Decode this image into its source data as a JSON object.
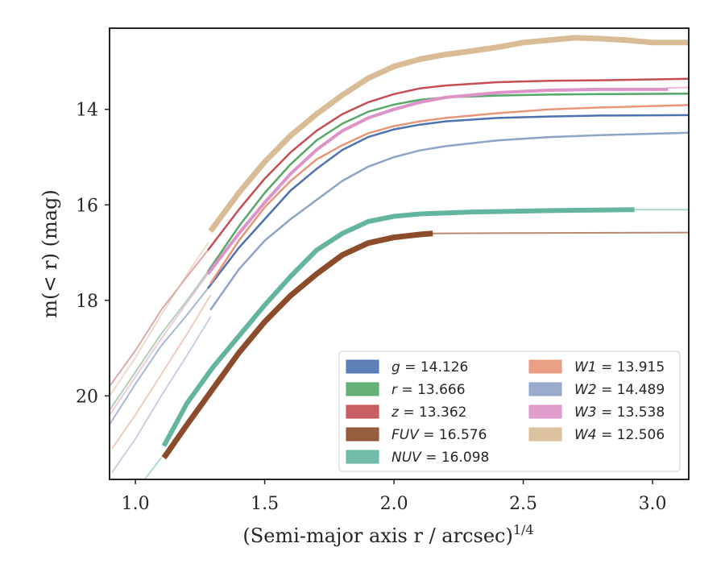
{
  "chart_data": {
    "type": "line",
    "title": "",
    "xlabel": "(Semi-major axis r / arcsec)",
    "xlabel_exponent": "1/4",
    "ylabel": "m(< r) (mag)",
    "xlim": [
      0.9,
      3.14
    ],
    "ylim": [
      21.75,
      12.3
    ],
    "y_inverted": true,
    "grid": false,
    "legend_position": "lower-right",
    "legend_columns": 2,
    "x_ticks": [
      1.0,
      1.5,
      2.0,
      2.5,
      3.0
    ],
    "x_tick_labels": [
      "1.0",
      "1.5",
      "2.0",
      "2.5",
      "3.0"
    ],
    "y_ticks": [
      14,
      16,
      18,
      20
    ],
    "y_tick_labels": [
      "14",
      "16",
      "18",
      "20"
    ],
    "series": [
      {
        "name": "g = 14.126",
        "band": "g",
        "mag": "14.126",
        "color": "#4c72b0",
        "faint": [
          [
            0.9,
            20.6
          ],
          [
            1.0,
            19.75
          ],
          [
            1.1,
            18.95
          ],
          [
            1.2,
            18.3
          ],
          [
            1.28,
            17.75
          ]
        ],
        "bold": [
          [
            1.28,
            17.75
          ],
          [
            1.4,
            16.9
          ],
          [
            1.5,
            16.3
          ],
          [
            1.6,
            15.7
          ],
          [
            1.7,
            15.25
          ],
          [
            1.8,
            14.85
          ],
          [
            1.9,
            14.58
          ],
          [
            2.0,
            14.42
          ],
          [
            2.1,
            14.32
          ],
          [
            2.2,
            14.25
          ],
          [
            2.4,
            14.18
          ],
          [
            2.6,
            14.15
          ],
          [
            2.8,
            14.13
          ],
          [
            3.14,
            14.12
          ]
        ],
        "bold_width": 2.5,
        "tail": []
      },
      {
        "name": "r = 13.666",
        "band": "r",
        "mag": "13.666",
        "color": "#55a868",
        "faint": [
          [
            0.9,
            20.3
          ],
          [
            1.0,
            19.5
          ],
          [
            1.1,
            18.7
          ],
          [
            1.2,
            18.0
          ],
          [
            1.28,
            17.4
          ]
        ],
        "bold": [
          [
            1.28,
            17.4
          ],
          [
            1.4,
            16.45
          ],
          [
            1.5,
            15.75
          ],
          [
            1.6,
            15.15
          ],
          [
            1.7,
            14.65
          ],
          [
            1.8,
            14.3
          ],
          [
            1.9,
            14.05
          ],
          [
            2.0,
            13.9
          ],
          [
            2.1,
            13.8
          ],
          [
            2.2,
            13.75
          ],
          [
            2.4,
            13.71
          ],
          [
            2.6,
            13.69
          ],
          [
            2.8,
            13.68
          ],
          [
            3.14,
            13.67
          ]
        ],
        "bold_width": 2.5,
        "tail": []
      },
      {
        "name": "z = 13.362",
        "band": "z",
        "mag": "13.362",
        "color": "#c44e52",
        "faint": [
          [
            0.9,
            19.8
          ],
          [
            1.0,
            19.05
          ],
          [
            1.1,
            18.2
          ],
          [
            1.2,
            17.5
          ],
          [
            1.28,
            16.95
          ]
        ],
        "bold": [
          [
            1.28,
            16.95
          ],
          [
            1.4,
            16.1
          ],
          [
            1.5,
            15.45
          ],
          [
            1.6,
            14.9
          ],
          [
            1.7,
            14.45
          ],
          [
            1.8,
            14.1
          ],
          [
            1.9,
            13.85
          ],
          [
            2.0,
            13.68
          ],
          [
            2.1,
            13.56
          ],
          [
            2.2,
            13.5
          ],
          [
            2.4,
            13.43
          ],
          [
            2.6,
            13.4
          ],
          [
            2.8,
            13.39
          ],
          [
            3.14,
            13.36
          ]
        ],
        "bold_width": 2.5,
        "tail": []
      },
      {
        "name": "FUV = 16.576",
        "band": "FUV",
        "mag": "16.576",
        "color": "#8c4b2a",
        "faint": [],
        "bold": [
          [
            1.11,
            21.3
          ],
          [
            1.2,
            20.6
          ],
          [
            1.3,
            19.85
          ],
          [
            1.4,
            19.1
          ],
          [
            1.5,
            18.45
          ],
          [
            1.6,
            17.9
          ],
          [
            1.7,
            17.45
          ],
          [
            1.8,
            17.05
          ],
          [
            1.9,
            16.8
          ],
          [
            2.0,
            16.68
          ],
          [
            2.1,
            16.62
          ],
          [
            2.15,
            16.6
          ]
        ],
        "bold_width": 7,
        "tail": [
          [
            2.15,
            16.6
          ],
          [
            2.5,
            16.59
          ],
          [
            3.14,
            16.58
          ]
        ],
        "tail_color": "#b7896f"
      },
      {
        "name": "NUV = 16.098",
        "band": "NUV",
        "mag": "16.098",
        "color": "#64b5a0",
        "faint": [
          [
            1.0,
            22.0
          ],
          [
            1.1,
            21.3
          ]
        ],
        "bold": [
          [
            1.11,
            21.05
          ],
          [
            1.2,
            20.15
          ],
          [
            1.3,
            19.4
          ],
          [
            1.4,
            18.75
          ],
          [
            1.5,
            18.1
          ],
          [
            1.6,
            17.5
          ],
          [
            1.7,
            16.95
          ],
          [
            1.8,
            16.6
          ],
          [
            1.9,
            16.35
          ],
          [
            2.0,
            16.24
          ],
          [
            2.1,
            16.19
          ],
          [
            2.3,
            16.15
          ],
          [
            2.6,
            16.12
          ],
          [
            2.93,
            16.1
          ]
        ],
        "bold_width": 6,
        "tail": [
          [
            2.93,
            16.1
          ],
          [
            3.14,
            16.1
          ]
        ],
        "tail_color": "#a8d8cb"
      },
      {
        "name": "W1 = 13.915",
        "band": "W1",
        "mag": "13.915",
        "color": "#e8967a",
        "faint": [
          [
            0.91,
            21.1
          ],
          [
            1.0,
            20.4
          ],
          [
            1.1,
            19.55
          ],
          [
            1.2,
            18.7
          ],
          [
            1.29,
            17.9
          ]
        ],
        "bold": [
          [
            1.29,
            17.65
          ],
          [
            1.4,
            16.75
          ],
          [
            1.5,
            16.05
          ],
          [
            1.6,
            15.5
          ],
          [
            1.7,
            15.05
          ],
          [
            1.8,
            14.75
          ],
          [
            1.9,
            14.5
          ],
          [
            2.0,
            14.35
          ],
          [
            2.1,
            14.25
          ],
          [
            2.2,
            14.18
          ],
          [
            2.4,
            14.08
          ],
          [
            2.6,
            14.0
          ],
          [
            2.8,
            13.96
          ],
          [
            3.0,
            13.93
          ],
          [
            3.14,
            13.91
          ]
        ],
        "bold_width": 2.5,
        "tail": []
      },
      {
        "name": "W2 = 14.489",
        "band": "W2",
        "mag": "14.489",
        "color": "#8fa2c8",
        "faint": [
          [
            0.91,
            21.6
          ],
          [
            1.0,
            20.9
          ],
          [
            1.1,
            20.0
          ],
          [
            1.2,
            19.15
          ],
          [
            1.29,
            18.35
          ]
        ],
        "bold": [
          [
            1.29,
            18.2
          ],
          [
            1.4,
            17.35
          ],
          [
            1.5,
            16.75
          ],
          [
            1.6,
            16.3
          ],
          [
            1.7,
            15.9
          ],
          [
            1.8,
            15.5
          ],
          [
            1.9,
            15.2
          ],
          [
            2.0,
            15.0
          ],
          [
            2.1,
            14.86
          ],
          [
            2.2,
            14.77
          ],
          [
            2.4,
            14.65
          ],
          [
            2.6,
            14.58
          ],
          [
            2.8,
            14.54
          ],
          [
            3.0,
            14.51
          ],
          [
            3.14,
            14.49
          ]
        ],
        "bold_width": 2.5,
        "tail": []
      },
      {
        "name": "W3 = 13.538",
        "band": "W3",
        "mag": "13.538",
        "color": "#dd93c7",
        "faint": [
          [
            0.9,
            20.4
          ],
          [
            1.0,
            19.6
          ],
          [
            1.1,
            18.8
          ],
          [
            1.2,
            18.05
          ],
          [
            1.28,
            17.45
          ]
        ],
        "bold": [
          [
            1.28,
            17.45
          ],
          [
            1.4,
            16.6
          ],
          [
            1.5,
            15.95
          ],
          [
            1.6,
            15.35
          ],
          [
            1.7,
            14.85
          ],
          [
            1.8,
            14.45
          ],
          [
            1.9,
            14.18
          ],
          [
            2.0,
            14.0
          ],
          [
            2.1,
            13.85
          ],
          [
            2.2,
            13.75
          ],
          [
            2.4,
            13.65
          ],
          [
            2.6,
            13.6
          ],
          [
            2.8,
            13.58
          ],
          [
            3.06,
            13.58
          ]
        ],
        "bold_width": 4,
        "tail": [
          [
            3.06,
            13.55
          ],
          [
            3.14,
            13.54
          ]
        ],
        "tail_color": "#eebadf"
      },
      {
        "name": "W4 = 12.506",
        "band": "W4",
        "mag": "12.506",
        "color": "#d9bb95",
        "faint": [
          [
            0.9,
            20.0
          ],
          [
            1.0,
            19.2
          ],
          [
            1.1,
            18.3
          ],
          [
            1.2,
            17.45
          ],
          [
            1.28,
            16.8
          ]
        ],
        "bold": [
          [
            1.29,
            16.55
          ],
          [
            1.4,
            15.75
          ],
          [
            1.5,
            15.1
          ],
          [
            1.6,
            14.55
          ],
          [
            1.7,
            14.1
          ],
          [
            1.8,
            13.7
          ],
          [
            1.9,
            13.35
          ],
          [
            2.0,
            13.1
          ],
          [
            2.1,
            12.95
          ],
          [
            2.2,
            12.85
          ],
          [
            2.3,
            12.78
          ],
          [
            2.4,
            12.7
          ],
          [
            2.5,
            12.6
          ],
          [
            2.6,
            12.55
          ],
          [
            2.7,
            12.5
          ],
          [
            2.8,
            12.52
          ],
          [
            2.9,
            12.55
          ],
          [
            3.0,
            12.6
          ],
          [
            3.14,
            12.6
          ]
        ],
        "bold_width": 7,
        "tail": []
      }
    ]
  }
}
